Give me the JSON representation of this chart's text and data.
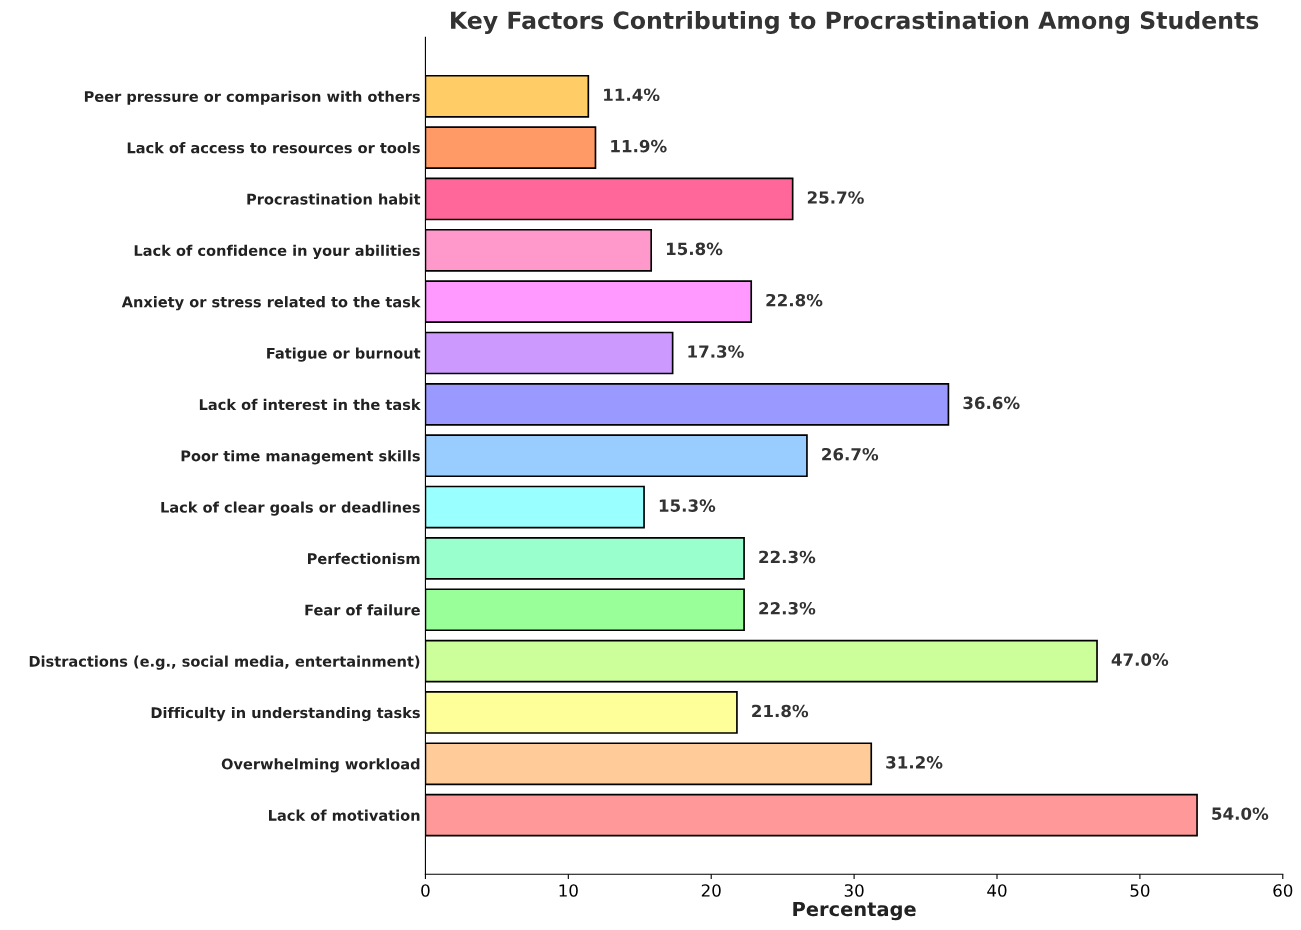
{
  "chart_data": {
    "type": "bar",
    "orientation": "horizontal",
    "title": "Key Factors Contributing to Procrastination Among Students",
    "xlabel": "Percentage",
    "categories": [
      "Peer pressure or comparison with others",
      "Lack of access to resources or tools",
      "Procrastination habit",
      "Lack of confidence in your abilities",
      "Anxiety or stress related to the task",
      "Fatigue or burnout",
      "Lack of interest in the task",
      "Poor time management skills",
      "Lack of clear goals or deadlines",
      "Perfectionism",
      "Fear of failure",
      "Distractions (e.g., social media, entertainment)",
      "Difficulty in understanding tasks",
      "Overwhelming workload",
      "Lack of motivation"
    ],
    "values": [
      11.4,
      11.9,
      25.7,
      15.8,
      22.8,
      17.3,
      36.6,
      26.7,
      15.3,
      22.3,
      22.3,
      47.0,
      21.8,
      31.2,
      54.0
    ],
    "value_labels": [
      "11.4%",
      "11.9%",
      "25.7%",
      "15.8%",
      "22.8%",
      "17.3%",
      "36.6%",
      "26.7%",
      "15.3%",
      "22.3%",
      "22.3%",
      "47.0%",
      "21.8%",
      "31.2%",
      "54.0%"
    ],
    "colors": [
      "#ffcc66",
      "#ff9966",
      "#ff6699",
      "#ff99cc",
      "#ff99ff",
      "#cc99ff",
      "#9999ff",
      "#99ccff",
      "#99ffff",
      "#99ffcc",
      "#99ff99",
      "#ccff99",
      "#ffff99",
      "#ffcc99",
      "#ff9999"
    ],
    "xlim": [
      0,
      60
    ],
    "xticks": [
      0,
      10,
      20,
      30,
      40,
      50,
      60
    ],
    "grid": false
  }
}
